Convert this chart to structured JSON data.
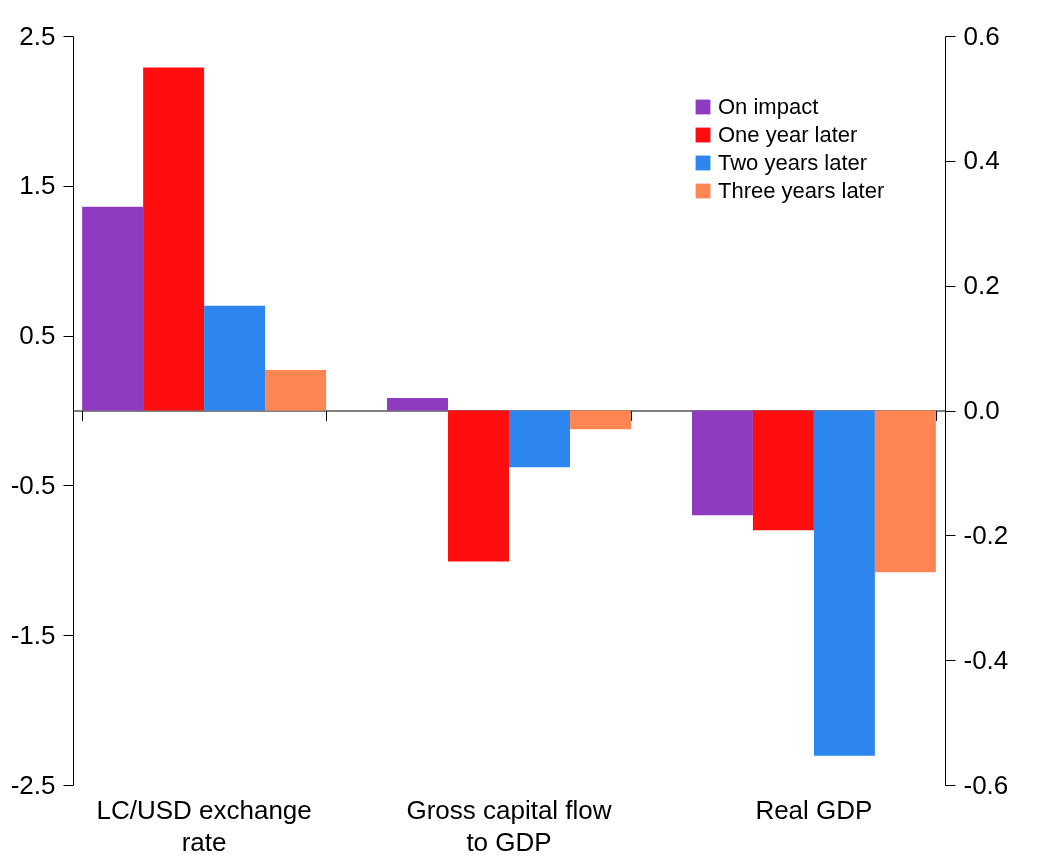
{
  "chart_data": {
    "type": "bar",
    "categories": [
      "LC/USD exchange rate",
      "Gross capital flow to GDP",
      "Real GDP"
    ],
    "series": [
      {
        "name": "On impact",
        "color": "#8e3bbf",
        "values": [
          1.36,
          null,
          null
        ]
      },
      {
        "name": "One year later",
        "color": "#ff0d0f",
        "values": [
          2.29,
          null,
          null
        ]
      },
      {
        "name": "Two years later",
        "color": "#2c86ee",
        "values": [
          0.7,
          null,
          null
        ]
      },
      {
        "name": "Three years later",
        "color": "#ff8552",
        "values": [
          0.27,
          null,
          null
        ]
      },
      {
        "color": "#8e3bbf",
        "axis": "y2",
        "values": [
          null,
          0.02,
          -0.168
        ]
      },
      {
        "color": "#ff0d0f",
        "axis": "y2",
        "values": [
          null,
          -0.242,
          -0.192
        ]
      },
      {
        "color": "#2c86ee",
        "axis": "y2",
        "values": [
          null,
          -0.091,
          -0.553
        ]
      },
      {
        "color": "#ff8552",
        "axis": "y2",
        "values": [
          null,
          -0.03,
          -0.259
        ]
      }
    ],
    "ylim": [
      -2.5,
      2.5
    ],
    "yticks": [
      -2.5,
      -1.5,
      -0.5,
      0.5,
      1.5,
      2.5
    ],
    "y2lim": [
      -0.6,
      0.6
    ],
    "y2ticks": [
      -0.6,
      -0.4,
      -0.2,
      {
        "value": 0,
        "label": "0.0"
      },
      0.2,
      0.4,
      0.6
    ],
    "legend": "top right"
  }
}
